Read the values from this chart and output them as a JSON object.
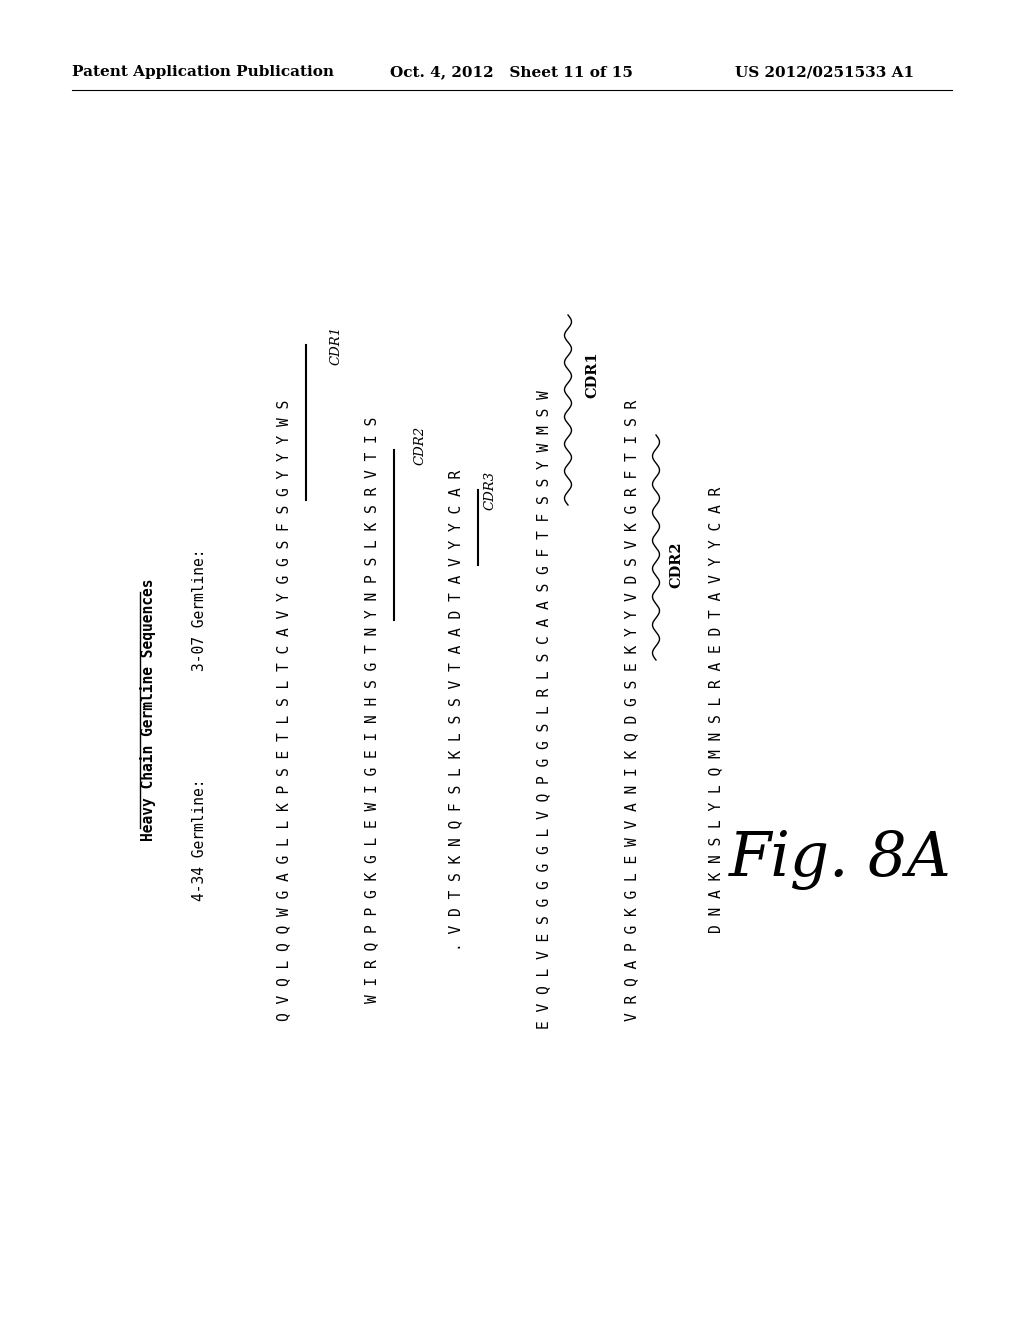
{
  "header_left": "Patent Application Publication",
  "header_mid": "Oct. 4, 2012   Sheet 11 of 15",
  "header_right": "US 2012/0251533 A1",
  "title": "Heavy Chain Germline Sequences",
  "fig_label": "Fig. 8A",
  "label_434": "4-34 Germline:",
  "label_307": "3-07 Germline:",
  "seq_434_1": "QVQLQQWGAGLLKPSETLSLTCAVYGGSFSGYYYW S",
  "seq_434_2": "WIRQPPGKGLEWIGEINHSGTNYNPSLKSRVTIS",
  "seq_434_3": "VDTSKNQFSLKLSSVTAADTAVYYCAR",
  "seq_307_1": "EVQLVESGGGGLVQPGGSLRLSCAASGFTFSSYWMSW",
  "seq_307_2": "VRQAPGKGLEWVANIKQDGSEKYYVDSVKGRFTISR",
  "seq_307_3": "DNAKNSLYLQMNSLRAEDTAVYYCAR",
  "background": "#ffffff",
  "text_color": "#000000"
}
